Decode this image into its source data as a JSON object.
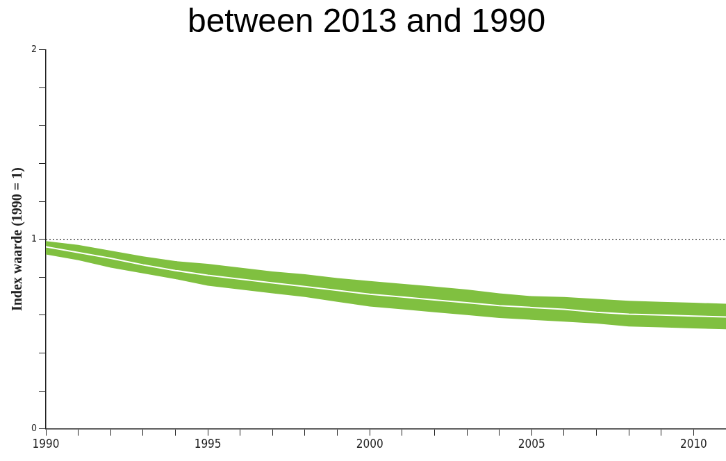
{
  "chart_data": {
    "type": "line",
    "title": "between 2013 and 1990",
    "ylabel": "Index waarde (1990 = 1)",
    "x": [
      1990,
      1991,
      1992,
      1993,
      1994,
      1995,
      1996,
      1997,
      1998,
      1999,
      2000,
      2001,
      2002,
      2003,
      2004,
      2005,
      2006,
      2007,
      2008,
      2009,
      2010,
      2011
    ],
    "series": [
      {
        "color": "#ffffff",
        "values": [
          0.96,
          0.93,
          0.9,
          0.865,
          0.835,
          0.81,
          0.79,
          0.77,
          0.75,
          0.73,
          0.71,
          0.695,
          0.68,
          0.665,
          0.65,
          0.64,
          0.63,
          0.615,
          0.605,
          0.6,
          0.595,
          0.59
        ],
        "lower": [
          0.92,
          0.89,
          0.85,
          0.82,
          0.79,
          0.755,
          0.735,
          0.715,
          0.695,
          0.67,
          0.645,
          0.63,
          0.615,
          0.6,
          0.585,
          0.575,
          0.565,
          0.555,
          0.54,
          0.535,
          0.53,
          0.525
        ],
        "upper": [
          0.99,
          0.97,
          0.94,
          0.91,
          0.885,
          0.87,
          0.85,
          0.83,
          0.815,
          0.795,
          0.78,
          0.765,
          0.75,
          0.735,
          0.715,
          0.7,
          0.695,
          0.685,
          0.675,
          0.67,
          0.665,
          0.66
        ]
      }
    ],
    "xlim": [
      1990,
      2011
    ],
    "xticks": [
      1990,
      {
        "value": 1991,
        "label": null
      },
      {
        "value": 1992,
        "label": null
      },
      {
        "value": 1993,
        "label": null
      },
      {
        "value": 1994,
        "label": null
      },
      1995,
      {
        "value": 1996,
        "label": null
      },
      {
        "value": 1997,
        "label": null
      },
      {
        "value": 1998,
        "label": null
      },
      {
        "value": 1999,
        "label": null
      },
      2000,
      {
        "value": 2001,
        "label": null
      },
      {
        "value": 2002,
        "label": null
      },
      {
        "value": 2003,
        "label": null
      },
      {
        "value": 2004,
        "label": null
      },
      2005,
      {
        "value": 2006,
        "label": null
      },
      {
        "value": 2007,
        "label": null
      },
      {
        "value": 2008,
        "label": null
      },
      {
        "value": 2009,
        "label": null
      },
      2010
    ],
    "ylim": [
      0,
      2
    ],
    "yticks": [
      0,
      {
        "value": 0.2,
        "label": null
      },
      {
        "value": 0.4,
        "label": null
      },
      {
        "value": 0.6,
        "label": null
      },
      {
        "value": 0.8,
        "label": null
      },
      1,
      {
        "value": 1.2,
        "label": null
      },
      {
        "value": 1.4,
        "label": null
      },
      {
        "value": 1.6,
        "label": null
      },
      {
        "value": 1.8,
        "label": null
      },
      2
    ],
    "ref_lines": [
      {
        "axis": "y",
        "value": 1,
        "color": "#333333",
        "line_style": "dotted"
      }
    ],
    "grid": false,
    "legend": false,
    "marker": "none"
  }
}
